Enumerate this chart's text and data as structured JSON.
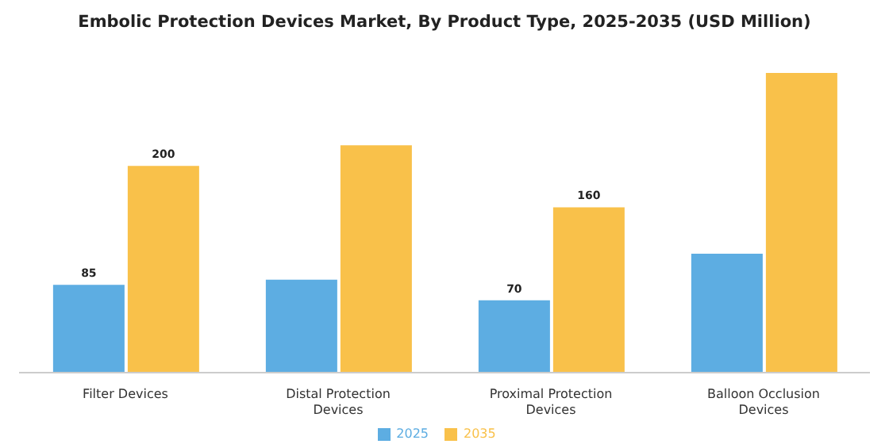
{
  "chart_data": {
    "type": "bar",
    "title": "Embolic Protection Devices Market, By Product Type, 2025-2035 (USD Million)",
    "categories": [
      "Filter Devices",
      "Distal Protection Devices",
      "Proximal Protection Devices",
      "Balloon Occlusion Devices"
    ],
    "series": [
      {
        "name": "2025",
        "color": "#5dade2",
        "values": [
          85,
          90,
          70,
          115
        ],
        "value_labels": [
          "85",
          null,
          "70",
          null
        ]
      },
      {
        "name": "2035",
        "color": "#f9c14a",
        "values": [
          200,
          220,
          160,
          290
        ],
        "value_labels": [
          "200",
          null,
          "160",
          null
        ]
      }
    ],
    "legend": "bottom",
    "grid": false
  }
}
